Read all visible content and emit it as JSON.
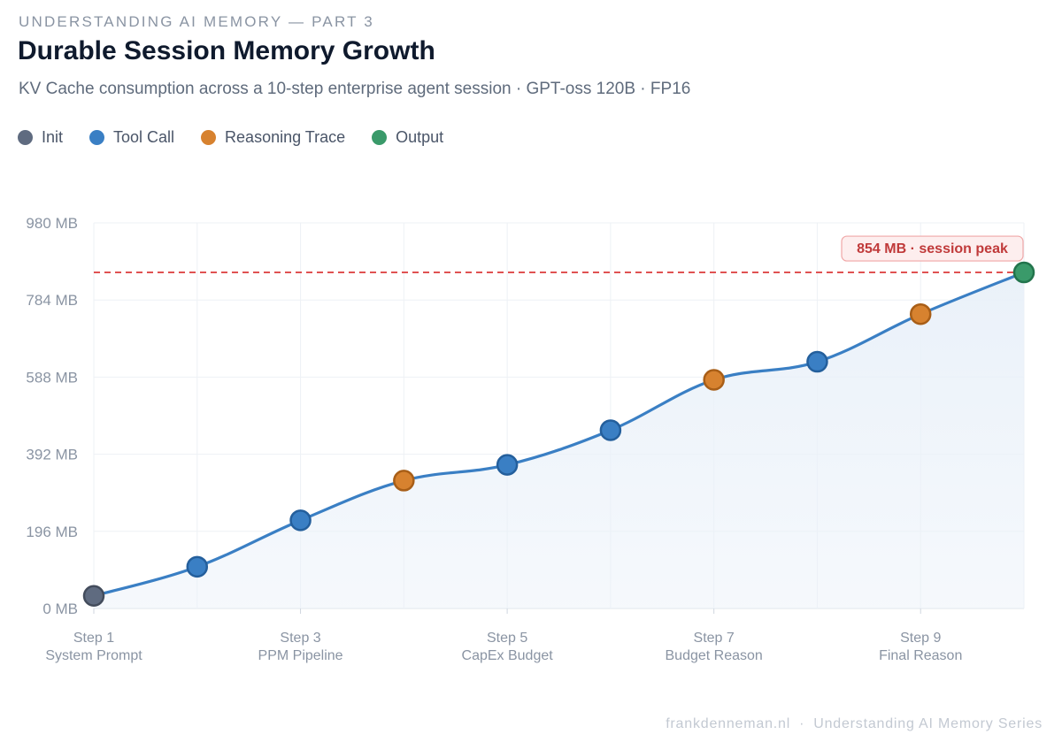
{
  "header": {
    "eyebrow": "UNDERSTANDING AI MEMORY — PART 3",
    "title": "Durable Session Memory Growth",
    "subtitle": "KV Cache consumption across a 10-step enterprise agent session  ·  GPT-oss 120B  ·  FP16"
  },
  "legend": [
    {
      "label": "Init",
      "color": "#5f6b80"
    },
    {
      "label": "Tool Call",
      "color": "#3a7fc4"
    },
    {
      "label": "Reasoning Trace",
      "color": "#d7822f"
    },
    {
      "label": "Output",
      "color": "#3a9a6a"
    }
  ],
  "colors": {
    "line": "#3a7fc4",
    "area": "#eaf1f9",
    "peak_line": "#e05252",
    "peak_label_text": "#c03a3a",
    "peak_label_bg": "#fdeeee",
    "peak_label_border": "#f0a7a7"
  },
  "chart_data": {
    "type": "line",
    "title": "Durable Session Memory Growth",
    "y_tick_labels": [
      "0 MB",
      "196 MB",
      "392 MB",
      "588 MB",
      "784 MB",
      "980 MB"
    ],
    "x_tick_labels": [
      {
        "step": "Step 1",
        "name": "System Prompt"
      },
      {
        "step": "Step 3",
        "name": "PPM Pipeline"
      },
      {
        "step": "Step 5",
        "name": "CapEx Budget"
      },
      {
        "step": "Step 7",
        "name": "Budget Reason"
      },
      {
        "step": "Step 9",
        "name": "Final Reason"
      }
    ],
    "x": [
      1,
      2,
      3,
      4,
      5,
      6,
      7,
      8,
      9,
      10
    ],
    "values": [
      32,
      106,
      224,
      325,
      365,
      453,
      581,
      627,
      748,
      854
    ],
    "point_types": [
      "Init",
      "Tool Call",
      "Tool Call",
      "Reasoning Trace",
      "Tool Call",
      "Tool Call",
      "Reasoning Trace",
      "Tool Call",
      "Reasoning Trace",
      "Output"
    ],
    "ylim": [
      0,
      980
    ],
    "xlim": [
      1,
      10
    ],
    "grid": true,
    "legend_placement": "top-left",
    "peak": {
      "value": 854,
      "label": "854 MB · session peak"
    }
  },
  "footer": {
    "site": "frankdenneman.nl",
    "series": "Understanding AI Memory Series"
  }
}
